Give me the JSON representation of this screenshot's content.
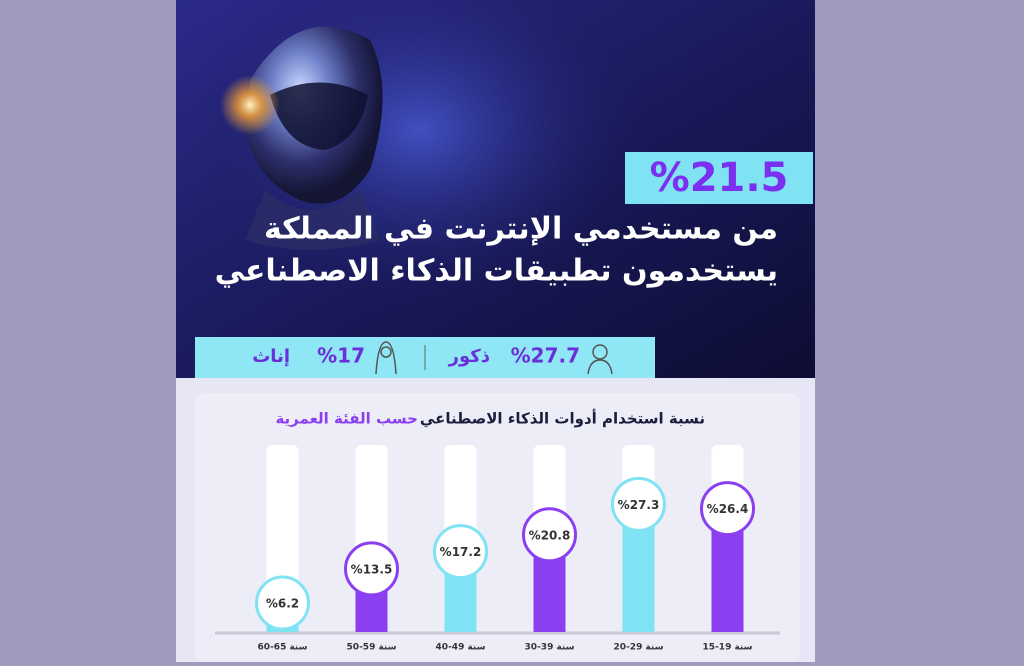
{
  "header": {
    "stat": "%21.5",
    "line1": "من مستخدمي الإنترنت في المملكة",
    "line2": "يستخدمون تطبيقات الذكاء الاصطناعي"
  },
  "gender": {
    "male_value": "%27.7",
    "male_label": "ذكور",
    "female_value": "%17",
    "female_label": "إناث"
  },
  "chart_data": {
    "type": "bar",
    "title": "نسبة استخدام أدوات الذكاء الاصطناعي",
    "title_highlight": "حسب الفئة العمرية",
    "categories": [
      "60-65 سنة",
      "50-59 سنة",
      "40-49 سنة",
      "30-39 سنة",
      "20-29 سنة",
      "15-19 سنة"
    ],
    "values": [
      6.2,
      13.5,
      17.2,
      20.8,
      27.3,
      26.4
    ],
    "value_labels": [
      "%6.2",
      "%13.5",
      "%17.2",
      "%20.8",
      "%27.3",
      "%26.4"
    ],
    "colors": [
      "#7fe3f3",
      "#8b3ff0",
      "#7fe3f3",
      "#8b3ff0",
      "#7fe3f3",
      "#8b3ff0"
    ],
    "ylim": [
      0,
      40
    ]
  }
}
